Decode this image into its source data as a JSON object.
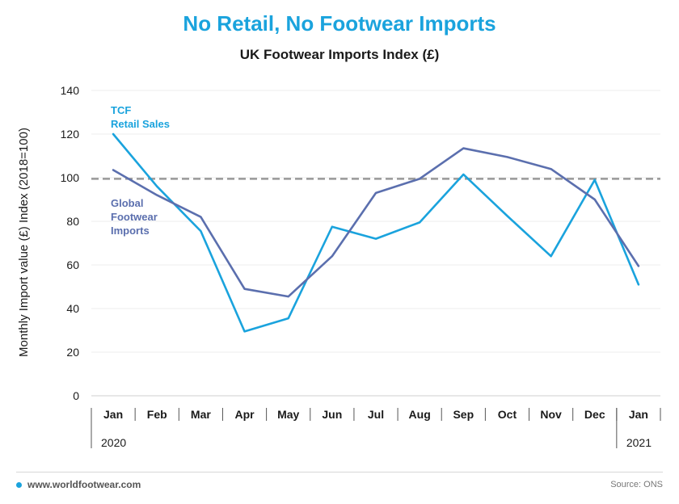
{
  "header": {
    "title": "No Retail, No Footwear Imports",
    "subtitle": "UK Footwear Imports Index (£)"
  },
  "footer": {
    "site": "www.worldfootwear.com",
    "source": "Source: ONS"
  },
  "chart_data": {
    "type": "line",
    "ylabel": "Monthly Import value (£) Index (2018=100)",
    "ylim": [
      0,
      140
    ],
    "yticks": [
      0,
      20,
      40,
      60,
      80,
      100,
      120,
      140
    ],
    "grid": true,
    "categories": [
      "Jan",
      "Feb",
      "Mar",
      "Apr",
      "May",
      "Jun",
      "Jul",
      "Aug",
      "Sep",
      "Oct",
      "Nov",
      "Dec",
      "Jan"
    ],
    "year_labels": [
      {
        "label": "2020",
        "start_index": 0
      },
      {
        "label": "2021",
        "start_index": 12
      }
    ],
    "reference_line": {
      "value": 99.5,
      "style": "dashed",
      "color": "#999999"
    },
    "series": [
      {
        "name": "TCF\nRetail Sales",
        "color": "#1aa3dd",
        "values": [
          120,
          96,
          75.5,
          29.5,
          35.5,
          77.5,
          72,
          79.5,
          101.5,
          82.5,
          64,
          99,
          51
        ]
      },
      {
        "name": "Global\nFootwear\nImports",
        "color": "#5b6fae",
        "values": [
          103.5,
          92,
          82,
          49,
          45.5,
          64,
          93,
          99.5,
          113.5,
          109.5,
          104,
          90,
          59.5
        ]
      }
    ]
  }
}
